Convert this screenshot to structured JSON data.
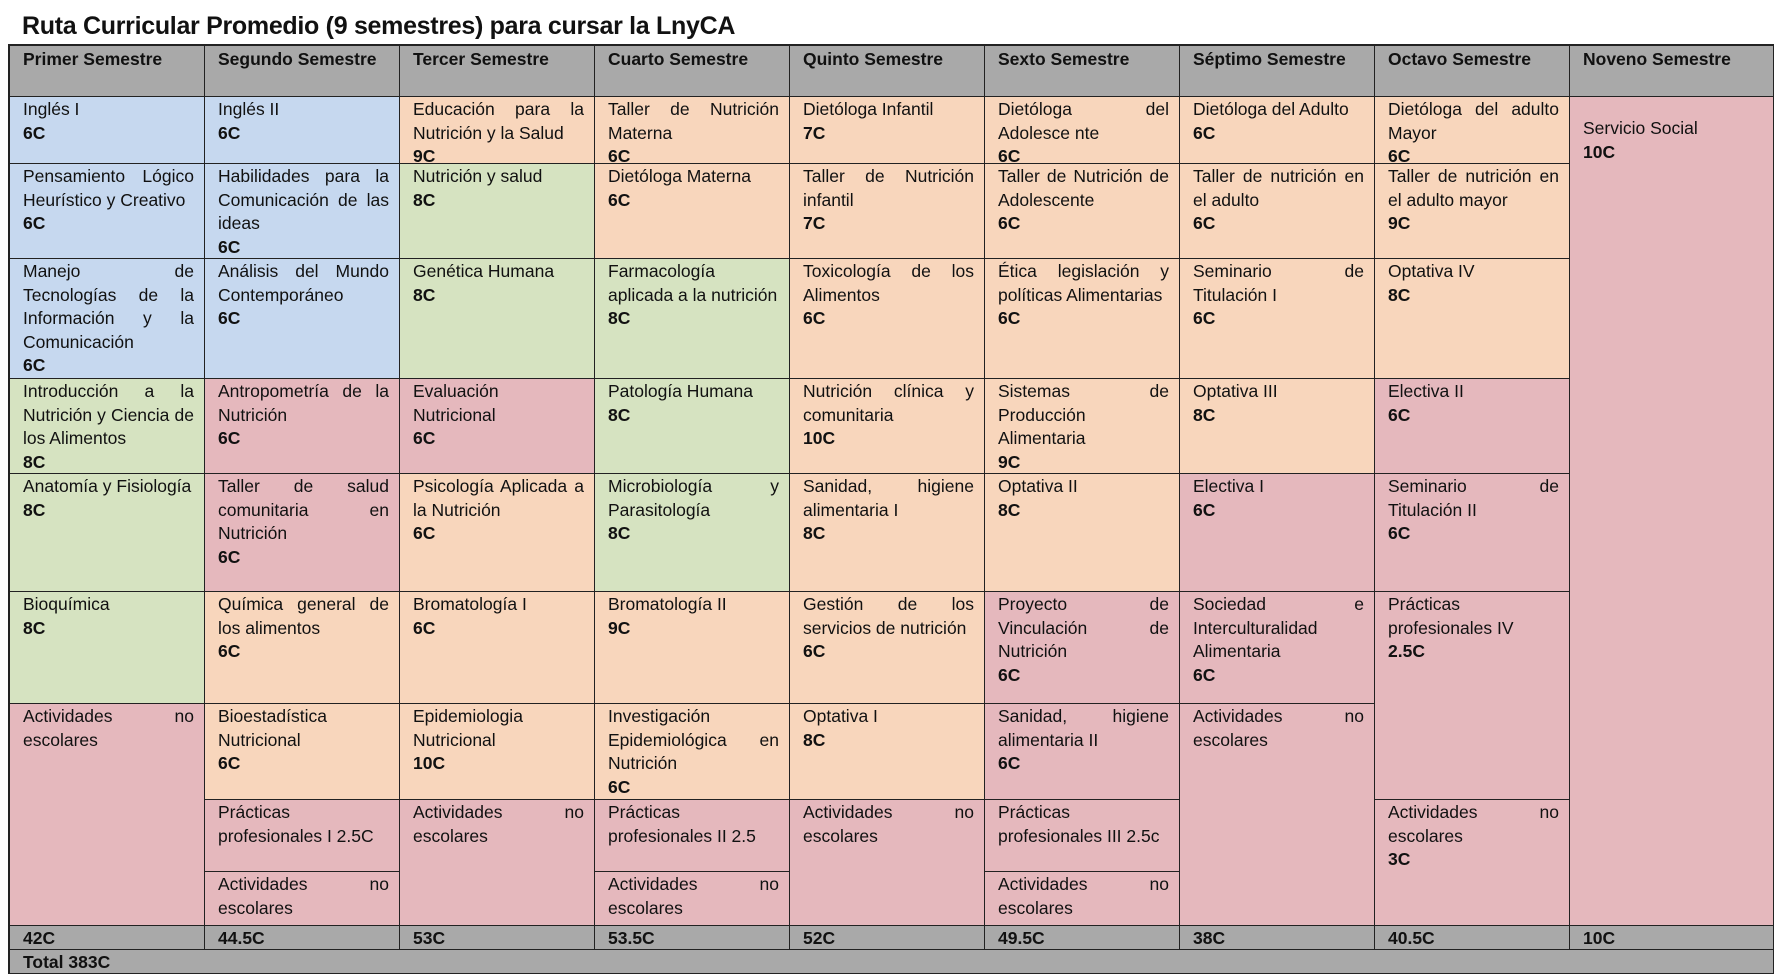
{
  "title": "Ruta Curricular Promedio (9 semestres) para cursar la LnyCA",
  "colors": {
    "header": "#a9a9a9",
    "blue": "#c6d8ef",
    "green": "#d6e3c1",
    "orange": "#f8d6bc",
    "pink": "#e5b8bd"
  },
  "headers": [
    "Primer Semestre",
    "Segundo Semestre",
    "Tercer Semestre",
    "Cuarto Semestre",
    "Quinto Semestre",
    "Sexto Semestre",
    "Séptimo Semestre",
    "Octavo Semestre",
    "Noveno Semestre"
  ],
  "courses": {
    "s1": [
      {
        "name": "Inglés I",
        "credits": "6C"
      },
      {
        "name": "Pensamiento Lógico Heurístico y Creativo",
        "credits": "6C"
      },
      {
        "name": "Manejo de Tecnologías de la Información y la Comunicación",
        "credits": "6C"
      },
      {
        "name": "Introducción a la Nutrición y Ciencia de los Alimentos",
        "credits": "8C"
      },
      {
        "name": "Anatomía y Fisiología",
        "credits": "8C"
      },
      {
        "name": "Bioquímica",
        "credits": "8C"
      },
      {
        "name": "Actividades no escolares",
        "credits": ""
      }
    ],
    "s2": [
      {
        "name": "Inglés II",
        "credits": "6C"
      },
      {
        "name": "Habilidades para la Comunicación de las ideas",
        "credits": "6C"
      },
      {
        "name": "Análisis del Mundo Contemporáneo",
        "credits": "6C"
      },
      {
        "name": "Antropometría de la Nutrición",
        "credits": "6C"
      },
      {
        "name": "Taller de salud comunitaria en Nutrición",
        "credits": "6C"
      },
      {
        "name": "Química general de los alimentos",
        "credits": "6C"
      },
      {
        "name": "Bioestadística Nutricional",
        "credits": "6C"
      },
      {
        "name": "Prácticas profesionales I 2.5C",
        "credits": ""
      },
      {
        "name": "Actividades no escolares",
        "credits": ""
      }
    ],
    "s3": [
      {
        "name": "Educación para la Nutrición y la Salud",
        "credits": "9C"
      },
      {
        "name": "Nutrición y salud",
        "credits": "8C"
      },
      {
        "name": "Genética Humana",
        "credits": "8C"
      },
      {
        "name": "Evaluación Nutricional",
        "credits": "6C"
      },
      {
        "name": "Psicología Aplicada a la Nutrición",
        "credits": "6C"
      },
      {
        "name": "Bromatología I",
        "credits": "6C"
      },
      {
        "name": "Epidemiologia Nutricional",
        "credits": "10C"
      },
      {
        "name": "Actividades no escolares",
        "credits": ""
      }
    ],
    "s4": [
      {
        "name": "Taller de Nutrición Materna",
        "credits": "6C"
      },
      {
        "name": "Dietóloga Materna",
        "credits": "6C"
      },
      {
        "name": "Farmacología aplicada a la nutrición",
        "credits": "8C"
      },
      {
        "name": "Patología Humana",
        "credits": "8C"
      },
      {
        "name": "Microbiología y Parasitología",
        "credits": "8C"
      },
      {
        "name": "Bromatología II",
        "credits": "9C"
      },
      {
        "name": "Investigación Epidemiológica en Nutrición",
        "credits": "6C"
      },
      {
        "name": "Prácticas profesionales II 2.5",
        "credits": ""
      },
      {
        "name": "Actividades no escolares",
        "credits": ""
      }
    ],
    "s5": [
      {
        "name": "Dietóloga Infantil",
        "credits": "7C"
      },
      {
        "name": "Taller de Nutrición infantil",
        "credits": "7C"
      },
      {
        "name": "Toxicología de los Alimentos",
        "credits": "6C"
      },
      {
        "name": "Nutrición clínica y comunitaria",
        "credits": "10C"
      },
      {
        "name": "Sanidad, higiene alimentaria I",
        "credits": "8C"
      },
      {
        "name": "Gestión de los servicios de nutrición",
        "credits": "6C"
      },
      {
        "name": "Optativa I",
        "credits": "8C"
      },
      {
        "name": "Actividades no escolares",
        "credits": ""
      }
    ],
    "s6": [
      {
        "name": "Dietóloga del Adolesce nte",
        "credits": "6C"
      },
      {
        "name": "Taller de Nutrición de Adolescente",
        "credits": "6C"
      },
      {
        "name": "Ética legislación y políticas Alimentarias",
        "credits": "6C"
      },
      {
        "name": "Sistemas de Producción Alimentaria",
        "credits": "9C"
      },
      {
        "name": "Optativa II",
        "credits": "8C"
      },
      {
        "name": "Proyecto de Vinculación de Nutrición",
        "credits": "6C"
      },
      {
        "name": "Sanidad, higiene alimentaria II",
        "credits": "6C"
      },
      {
        "name": "Prácticas profesionales III 2.5c",
        "credits": ""
      },
      {
        "name": "Actividades no escolares",
        "credits": ""
      }
    ],
    "s7": [
      {
        "name": "Dietóloga del Adulto",
        "credits": "6C"
      },
      {
        "name": "Taller de nutrición en el adulto",
        "credits": "6C"
      },
      {
        "name": "Seminario de Titulación I",
        "credits": "6C"
      },
      {
        "name": "Optativa III",
        "credits": "8C"
      },
      {
        "name": "Electiva I",
        "credits": "6C"
      },
      {
        "name": "Sociedad e Interculturalidad Alimentaria",
        "credits": "6C"
      },
      {
        "name": "Actividades no escolares",
        "credits": ""
      }
    ],
    "s8": [
      {
        "name": "Dietóloga del adulto Mayor",
        "credits": "6C"
      },
      {
        "name": "Taller de nutrición en el adulto mayor",
        "credits": "9C"
      },
      {
        "name": "Optativa IV",
        "credits": "8C"
      },
      {
        "name": "Electiva II",
        "credits": "6C"
      },
      {
        "name": "Seminario de Titulación II",
        "credits": "6C"
      },
      {
        "name": "Prácticas profesionales IV",
        "credits": "2.5C"
      },
      {
        "name": "Actividades no escolares",
        "credits": "3C"
      }
    ],
    "s9": [
      {
        "name": "Servicio Social",
        "credits": "10C"
      }
    ]
  },
  "totals": [
    "42C",
    "44.5C",
    "53C",
    "53.5C",
    "52C",
    "49.5C",
    "38C",
    "40.5C",
    "10C"
  ],
  "grand_total": "Total 383C"
}
